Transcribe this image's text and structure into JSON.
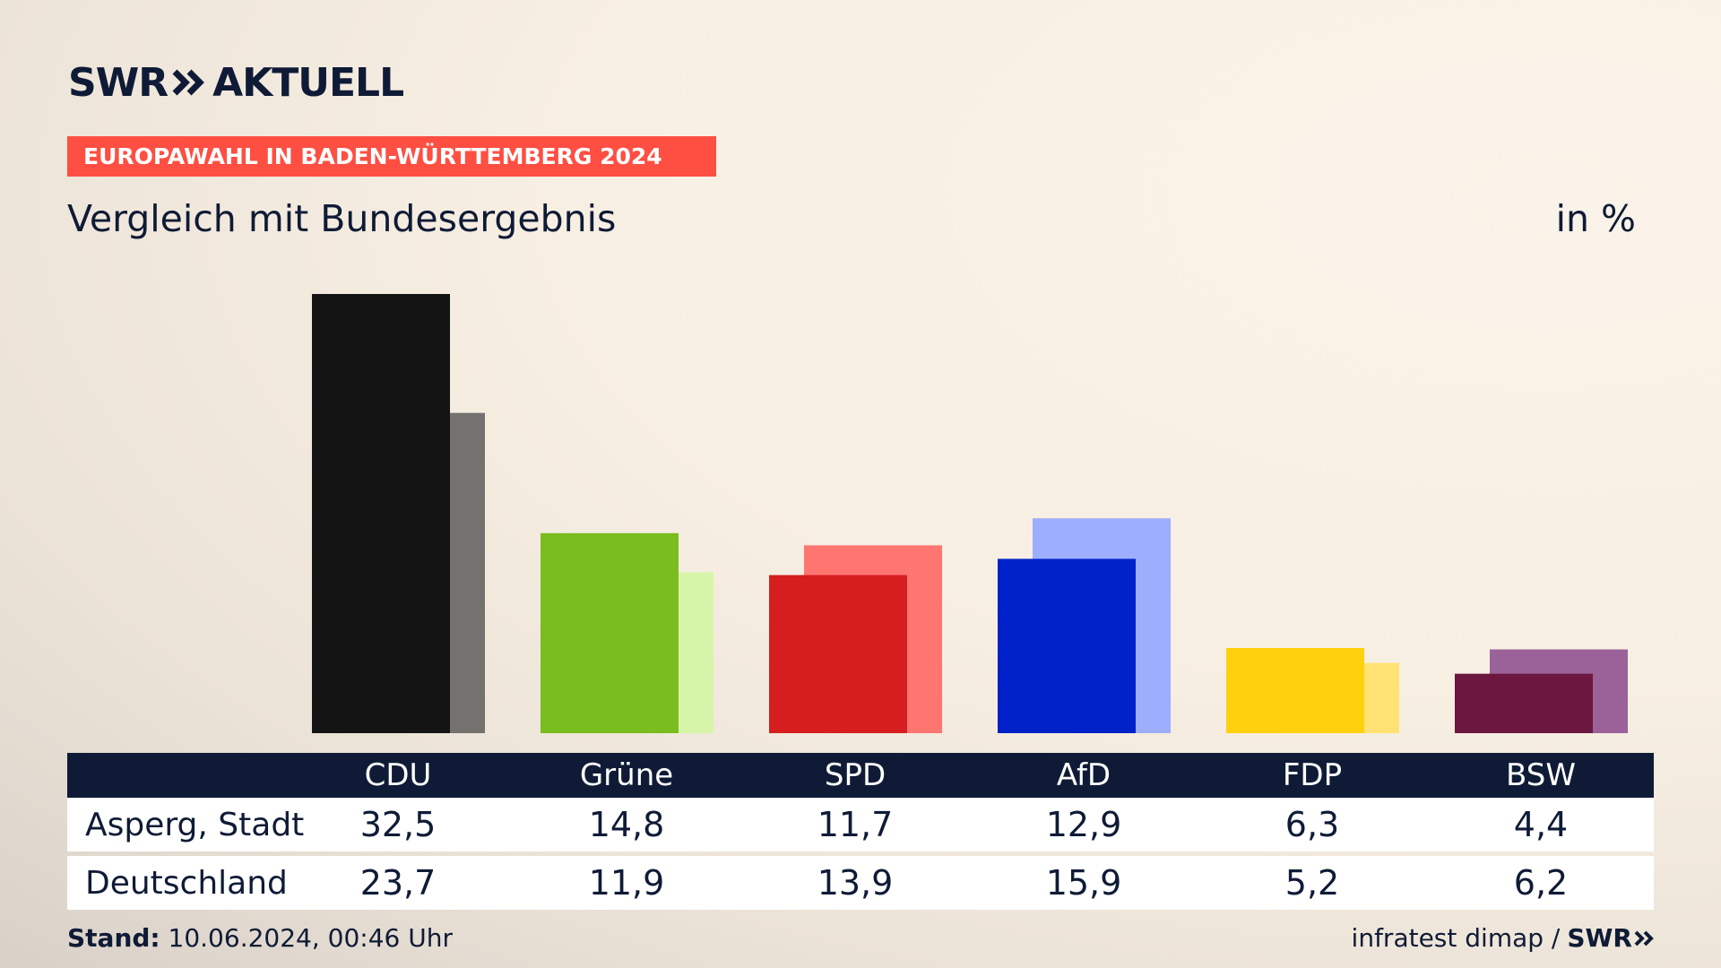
{
  "brand": {
    "swr": "SWR",
    "aktuell": "AKTUELL"
  },
  "kicker": "EUROPAWAHL IN BADEN-WÜRTTEMBERG 2024",
  "subtitle": "Vergleich mit Bundesergebnis",
  "unit": "in %",
  "footer": {
    "stand_label": "Stand:",
    "stand_value": "10.06.2024, 00:46 Uhr",
    "source": "infratest dimap /",
    "source_brand": "SWR"
  },
  "chart_data": {
    "type": "bar",
    "categories": [
      "CDU",
      "Grüne",
      "SPD",
      "AfD",
      "FDP",
      "BSW"
    ],
    "series": [
      {
        "name": "Asperg, Stadt",
        "values": [
          32.5,
          14.8,
          11.7,
          12.9,
          6.3,
          4.4
        ]
      },
      {
        "name": "Deutschland",
        "values": [
          23.7,
          11.9,
          13.9,
          15.9,
          5.2,
          6.2
        ]
      }
    ],
    "display_values": {
      "Asperg, Stadt": [
        "32,5",
        "14,8",
        "11,7",
        "12,9",
        "6,3",
        "4,4"
      ],
      "Deutschland": [
        "23,7",
        "11,9",
        "13,9",
        "15,9",
        "5,2",
        "6,2"
      ]
    },
    "colors_primary": [
      "#141414",
      "#7abd1e",
      "#d61e1e",
      "#0021c8",
      "#ffd00d",
      "#6b1740"
    ],
    "colors_secondary": [
      "#74726e",
      "#d7f5a8",
      "#ff7570",
      "#9daeff",
      "#ffe273",
      "#9b6299"
    ],
    "ylim": [
      0,
      32.5
    ],
    "grid": false,
    "legend": "table-below"
  }
}
